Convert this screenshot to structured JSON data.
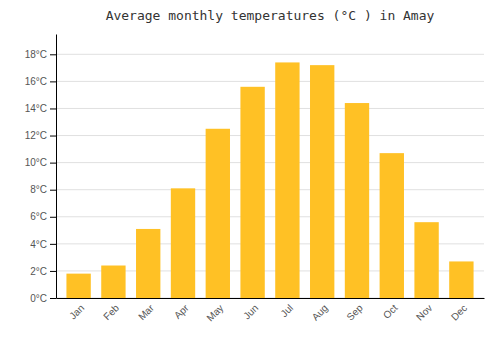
{
  "chart_data": {
    "type": "bar",
    "title": "Average monthly temperatures (°C ) in Amay",
    "categories": [
      "Jan",
      "Feb",
      "Mar",
      "Apr",
      "May",
      "Jun",
      "Jul",
      "Aug",
      "Sep",
      "Oct",
      "Nov",
      "Dec"
    ],
    "values": [
      1.8,
      2.4,
      5.1,
      8.1,
      12.5,
      15.6,
      17.4,
      17.2,
      14.4,
      10.7,
      5.6,
      2.7
    ],
    "color": "#FFC125",
    "ylim": [
      0,
      19.5
    ],
    "yticks": [
      {
        "value": 0,
        "label": "0°C"
      },
      {
        "value": 2,
        "label": "2°C"
      },
      {
        "value": 4,
        "label": "4°C"
      },
      {
        "value": 6,
        "label": "6°C"
      },
      {
        "value": 8,
        "label": "8°C"
      },
      {
        "value": 10,
        "label": "10°C"
      },
      {
        "value": 12,
        "label": "12°C"
      },
      {
        "value": 14,
        "label": "14°C"
      },
      {
        "value": 16,
        "label": "16°C"
      },
      {
        "value": 18,
        "label": "18°C"
      }
    ],
    "grid": true
  }
}
